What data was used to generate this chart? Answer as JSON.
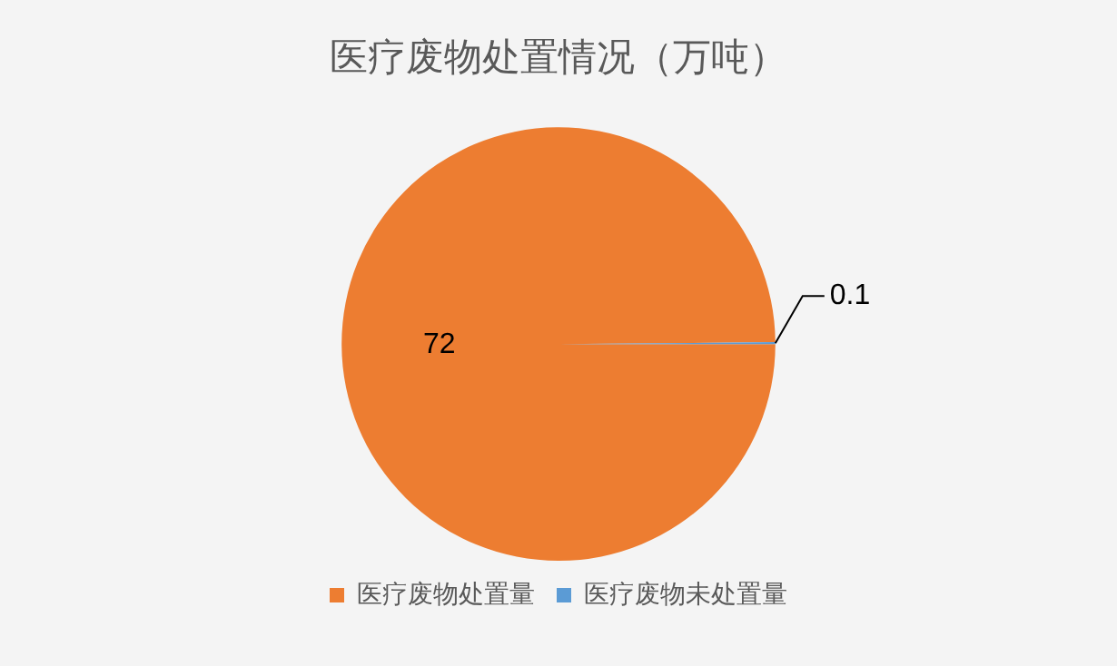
{
  "chart_data": {
    "type": "pie",
    "title": "医疗废物处置情况（万吨）",
    "categories": [
      "医疗废物处置量",
      "医疗废物未处置量"
    ],
    "values": [
      72,
      0.1
    ],
    "colors": [
      "#ed7d31",
      "#5b9bd5"
    ],
    "data_labels": true,
    "legend": "bottom"
  }
}
